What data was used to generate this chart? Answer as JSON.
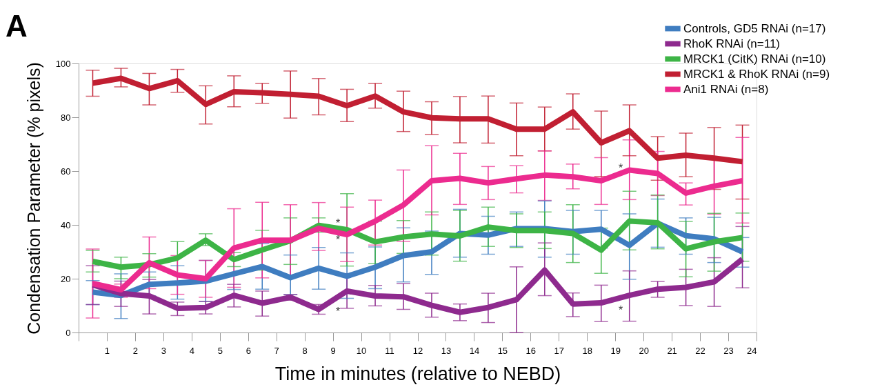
{
  "chart_data": {
    "type": "line",
    "title": "A",
    "xlabel": "Time in minutes (relative to NEBD)",
    "ylabel": "Condensation Parameter (% pixels)",
    "x": [
      0.5,
      1.5,
      2.5,
      3.5,
      4.5,
      5.5,
      6.5,
      7.5,
      8.5,
      9.5,
      10.5,
      11.5,
      12.5,
      13.5,
      14.5,
      15.5,
      16.5,
      17.5,
      18.5,
      19.5,
      20.5,
      21.5,
      22.5,
      23.5
    ],
    "series": [
      {
        "name": "Controls, GD5 RNAi (n=17)",
        "color": "#3f7dc0",
        "values": [
          15.0,
          13.8,
          17.9,
          18.4,
          19.1,
          21.8,
          24.5,
          20.4,
          23.9,
          20.9,
          24.3,
          28.6,
          30.0,
          36.8,
          36.2,
          38.6,
          38.6,
          37.5,
          38.4,
          32.4,
          40.6,
          36.0,
          34.8,
          30.0
        ],
        "errors": [
          [
            10.4,
            19.3
          ],
          [
            5.2,
            21.8
          ],
          [
            13.6,
            22.5
          ],
          [
            12.4,
            24.8
          ],
          [
            11.5,
            26.8
          ],
          [
            16.0,
            27.5
          ],
          [
            16.1,
            33.0
          ],
          [
            14.1,
            28.8
          ],
          [
            16.1,
            31.6
          ],
          [
            12.7,
            29.6
          ],
          [
            16.3,
            31.8
          ],
          [
            18.8,
            38.9
          ],
          [
            21.6,
            37.7
          ],
          [
            28.0,
            45.8
          ],
          [
            29.1,
            43.2
          ],
          [
            32.0,
            44.8
          ],
          [
            28.0,
            48.9
          ],
          [
            29.1,
            45.4
          ],
          [
            31.4,
            45.4
          ],
          [
            19.8,
            44.1
          ],
          [
            31.7,
            49.6
          ],
          [
            29.1,
            42.6
          ],
          [
            26.0,
            42.8
          ],
          [
            24.3,
            35.3
          ]
        ]
      },
      {
        "name": "RhoK RNAi (n=11)",
        "color": "#8e2a8e",
        "values": [
          17.7,
          14.5,
          13.6,
          9.0,
          9.3,
          13.8,
          10.9,
          13.1,
          8.6,
          15.4,
          13.6,
          13.3,
          10.1,
          7.5,
          9.3,
          12.2,
          23.2,
          10.6,
          11.0,
          13.8,
          16.1,
          16.8,
          18.8,
          27.3
        ],
        "errors": [
          [
            10.4,
            24.8
          ],
          [
            9.7,
            19.1
          ],
          [
            6.9,
            19.7
          ],
          [
            6.3,
            11.3
          ],
          [
            6.9,
            11.6
          ],
          [
            9.5,
            17.9
          ],
          [
            6.1,
            15.4
          ],
          [
            12.0,
            14.1
          ],
          [
            6.8,
            10.4
          ],
          [
            9.0,
            21.8
          ],
          [
            9.9,
            17.5
          ],
          [
            8.6,
            18.2
          ],
          [
            5.7,
            14.6
          ],
          [
            4.4,
            10.6
          ],
          [
            3.7,
            14.6
          ],
          [
            0,
            24.4
          ],
          [
            13.7,
            33.3
          ],
          [
            5.9,
            14.7
          ],
          [
            4.1,
            17.6
          ],
          [
            4.2,
            22.9
          ],
          [
            13.1,
            19.0
          ],
          [
            10.0,
            23.5
          ],
          [
            9.7,
            27.8
          ],
          [
            16.6,
            39.4
          ]
        ]
      },
      {
        "name": "MRCK1 (CitK) RNAi (n=10)",
        "color": "#3db446",
        "values": [
          26.4,
          24.3,
          25.2,
          27.7,
          34.3,
          27.1,
          30.7,
          34.1,
          39.8,
          38.2,
          33.7,
          35.5,
          36.6,
          35.9,
          39.2,
          37.9,
          37.9,
          36.8,
          30.6,
          41.4,
          40.8,
          31.1,
          33.7,
          35.3
        ],
        "errors": [
          [
            22.5,
            30.5
          ],
          [
            20.0,
            28.0
          ],
          [
            20.6,
            29.3
          ],
          [
            21.8,
            33.8
          ],
          [
            32.3,
            36.7
          ],
          [
            24.5,
            29.7
          ],
          [
            23.2,
            38.0
          ],
          [
            25.3,
            42.6
          ],
          [
            37.3,
            42.6
          ],
          [
            24.7,
            51.6
          ],
          [
            25.6,
            41.4
          ],
          [
            29.4,
            41.6
          ],
          [
            28.8,
            44.8
          ],
          [
            26.5,
            45.4
          ],
          [
            32.0,
            46.6
          ],
          [
            31.6,
            44.1
          ],
          [
            31.2,
            44.8
          ],
          [
            26.0,
            47.5
          ],
          [
            22.0,
            38.8
          ],
          [
            30.7,
            52.5
          ],
          [
            31.1,
            51.1
          ],
          [
            20.7,
            41.3
          ],
          [
            22.8,
            44.3
          ],
          [
            26.5,
            44.4
          ]
        ]
      },
      {
        "name": "MRCK1 & RhoK RNAi (n=9)",
        "color": "#c11f32",
        "values": [
          92.7,
          94.5,
          90.7,
          93.6,
          84.8,
          89.5,
          89.1,
          88.5,
          87.8,
          84.3,
          87.9,
          82.0,
          79.8,
          79.4,
          79.4,
          75.6,
          75.6,
          82.0,
          70.5,
          75.0,
          64.8,
          65.9,
          64.8,
          63.5
        ],
        "errors": [
          [
            87.8,
            97.5
          ],
          [
            91.3,
            98.2
          ],
          [
            84.6,
            96.3
          ],
          [
            89.3,
            97.8
          ],
          [
            77.5,
            91.7
          ],
          [
            83.9,
            95.4
          ],
          [
            85.2,
            92.6
          ],
          [
            79.7,
            97.2
          ],
          [
            80.9,
            94.4
          ],
          [
            78.4,
            90.4
          ],
          [
            83.4,
            92.6
          ],
          [
            74.7,
            89.7
          ],
          [
            73.6,
            85.8
          ],
          [
            70.5,
            87.7
          ],
          [
            70.4,
            87.9
          ],
          [
            65.7,
            85.3
          ],
          [
            67.5,
            83.8
          ],
          [
            75.6,
            88.7
          ],
          [
            58.0,
            82.3
          ],
          [
            65.7,
            84.6
          ],
          [
            56.6,
            72.8
          ],
          [
            57.9,
            74.1
          ],
          [
            53.2,
            76.2
          ],
          [
            49.6,
            77.1
          ]
        ]
      },
      {
        "name": "Ani1 RNAi (n=8)",
        "color": "#ec2b8f",
        "values": [
          18.2,
          15.9,
          25.9,
          21.4,
          20.0,
          31.4,
          34.3,
          34.3,
          38.7,
          36.4,
          41.4,
          47.4,
          56.4,
          57.3,
          55.6,
          57.1,
          58.5,
          57.9,
          56.4,
          60.4,
          59.1,
          51.8,
          54.4,
          56.4
        ],
        "errors": [
          [
            5.4,
            31.0
          ],
          [
            13.1,
            18.0
          ],
          [
            16.3,
            35.5
          ],
          [
            14.2,
            28.6
          ],
          [
            13.1,
            26.8
          ],
          [
            16.8,
            46.0
          ],
          [
            20.3,
            48.4
          ],
          [
            20.9,
            47.5
          ],
          [
            30.5,
            48.3
          ],
          [
            26.4,
            46.6
          ],
          [
            32.5,
            49.2
          ],
          [
            33.9,
            60.4
          ],
          [
            43.7,
            69.4
          ],
          [
            47.6,
            66.6
          ],
          [
            49.4,
            61.7
          ],
          [
            51.9,
            62.0
          ],
          [
            49.1,
            67.5
          ],
          [
            53.4,
            62.6
          ],
          [
            47.6,
            65.0
          ],
          [
            49.4,
            71.6
          ],
          [
            50.9,
            67.3
          ],
          [
            47.4,
            55.6
          ],
          [
            44.0,
            65.0
          ],
          [
            40.7,
            72.5
          ]
        ]
      }
    ],
    "annotations": [
      "*",
      "*",
      "*",
      "*",
      "*"
    ],
    "xlim": [
      0,
      24
    ],
    "ylim": [
      0,
      100
    ],
    "xticks": [
      {
        "value": 0,
        "label": null
      },
      1,
      2,
      3,
      4,
      5,
      6,
      7,
      8,
      9,
      10,
      11,
      12,
      13,
      14,
      15,
      16,
      17,
      18,
      19,
      20,
      21,
      22,
      23,
      24
    ],
    "yticks": [
      0,
      20,
      40,
      60,
      80,
      100
    ],
    "grid": false,
    "legend": "top right",
    "line_style": "solid"
  }
}
